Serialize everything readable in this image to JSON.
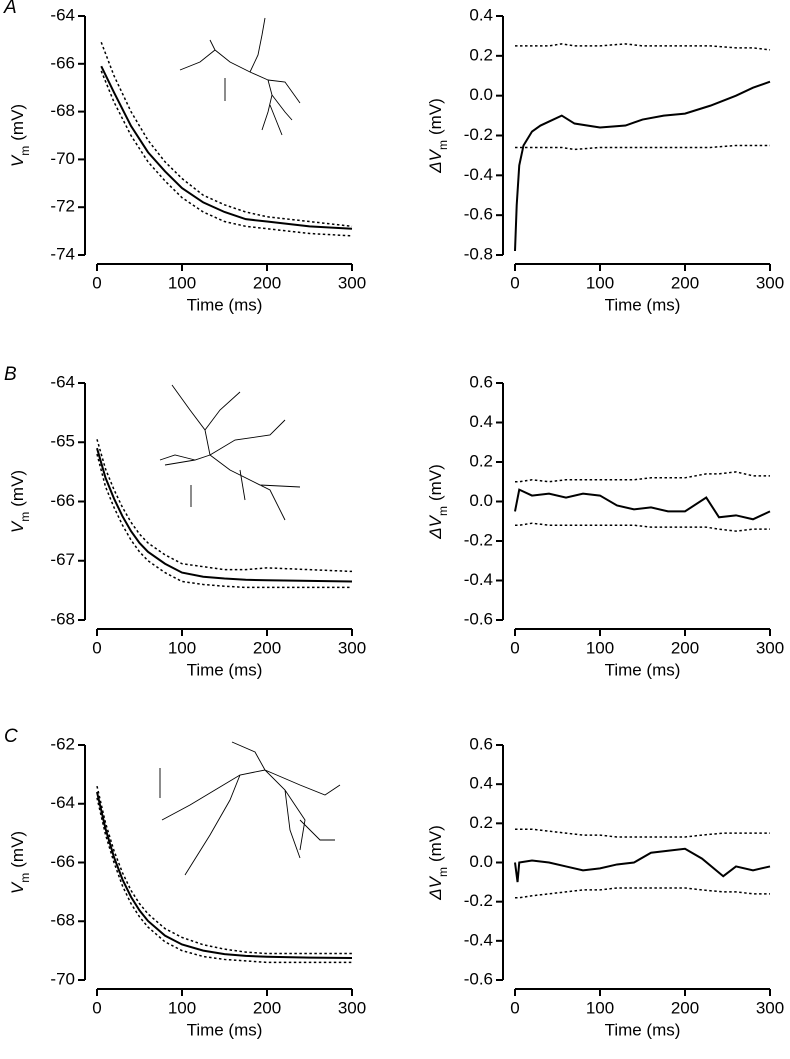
{
  "chart_data": [
    {
      "type": "line",
      "panel": "A",
      "xlabel": "Time (ms)",
      "ylabel": [
        "V",
        "m",
        "(mV)"
      ],
      "xlim": [
        0,
        300
      ],
      "xticks": [
        0,
        100,
        200,
        300
      ],
      "ylim": [
        -74,
        -64
      ],
      "yticks": [
        -74,
        -72,
        -70,
        -68,
        -66,
        -64
      ],
      "x": [
        5,
        20,
        40,
        60,
        80,
        100,
        125,
        150,
        175,
        200,
        250,
        300
      ],
      "series": [
        {
          "color": "#000000",
          "style": "solid",
          "values": [
            -66.1,
            -67.2,
            -68.6,
            -69.7,
            -70.5,
            -71.2,
            -71.8,
            -72.2,
            -72.5,
            -72.6,
            -72.8,
            -72.9
          ]
        },
        {
          "color": "#000000",
          "style": "dotted",
          "values": [
            -65.1,
            -66.5,
            -68.0,
            -69.2,
            -70.1,
            -70.8,
            -71.5,
            -71.9,
            -72.2,
            -72.4,
            -72.6,
            -72.8
          ]
        },
        {
          "color": "#000000",
          "style": "dotted",
          "values": [
            -66.3,
            -67.6,
            -69.0,
            -70.1,
            -70.9,
            -71.6,
            -72.2,
            -72.6,
            -72.8,
            -72.9,
            -73.1,
            -73.2
          ]
        }
      ]
    },
    {
      "type": "line",
      "xlabel": "Time (ms)",
      "ylabel": [
        "ΔV",
        "m",
        "(mV)"
      ],
      "xlim": [
        0,
        300
      ],
      "xticks": [
        0,
        100,
        200,
        300
      ],
      "ylim": [
        -0.8,
        0.4
      ],
      "yticks": [
        -0.8,
        -0.6,
        -0.4,
        -0.2,
        {
          "value": 0,
          "label": "0.0"
        },
        0.2,
        0.4
      ],
      "x": [
        0,
        2,
        5,
        10,
        20,
        30,
        40,
        55,
        70,
        100,
        130,
        150,
        175,
        200,
        230,
        260,
        280,
        300
      ],
      "series": [
        {
          "color": "#000000",
          "style": "solid",
          "values": [
            -0.78,
            -0.55,
            -0.35,
            -0.25,
            -0.18,
            -0.15,
            -0.13,
            -0.1,
            -0.14,
            -0.16,
            -0.15,
            -0.12,
            -0.1,
            -0.09,
            -0.05,
            0.0,
            0.04,
            0.07
          ]
        },
        {
          "color": "#000000",
          "style": "dotted",
          "values": [
            0.25,
            0.25,
            0.25,
            0.25,
            0.25,
            0.25,
            0.25,
            0.26,
            0.25,
            0.25,
            0.26,
            0.25,
            0.25,
            0.25,
            0.25,
            0.24,
            0.24,
            0.23
          ]
        },
        {
          "color": "#000000",
          "style": "dotted",
          "values": [
            -0.26,
            -0.26,
            -0.26,
            -0.26,
            -0.26,
            -0.26,
            -0.26,
            -0.26,
            -0.27,
            -0.26,
            -0.26,
            -0.26,
            -0.26,
            -0.26,
            -0.26,
            -0.25,
            -0.25,
            -0.25
          ]
        }
      ]
    },
    {
      "type": "line",
      "panel": "B",
      "xlabel": "Time (ms)",
      "ylabel": [
        "V",
        "m",
        "(mV)"
      ],
      "xlim": [
        0,
        300
      ],
      "xticks": [
        0,
        100,
        200,
        300
      ],
      "ylim": [
        -68,
        -64
      ],
      "yticks": [
        -68,
        -67,
        -66,
        -65,
        -64
      ],
      "x": [
        0,
        10,
        20,
        30,
        40,
        50,
        60,
        80,
        100,
        125,
        150,
        175,
        200,
        250,
        300
      ],
      "series": [
        {
          "color": "#000000",
          "style": "solid",
          "values": [
            -65.1,
            -65.6,
            -65.95,
            -66.25,
            -66.5,
            -66.7,
            -66.85,
            -67.05,
            -67.2,
            -67.27,
            -67.3,
            -67.32,
            -67.33,
            -67.34,
            -67.35
          ]
        },
        {
          "color": "#000000",
          "style": "dotted",
          "values": [
            -64.95,
            -65.45,
            -65.8,
            -66.1,
            -66.35,
            -66.55,
            -66.7,
            -66.9,
            -67.05,
            -67.1,
            -67.15,
            -67.15,
            -67.12,
            -67.15,
            -67.18
          ]
        },
        {
          "color": "#000000",
          "style": "dotted",
          "values": [
            -65.2,
            -65.75,
            -66.1,
            -66.4,
            -66.65,
            -66.85,
            -67.0,
            -67.2,
            -67.35,
            -67.4,
            -67.43,
            -67.45,
            -67.45,
            -67.45,
            -67.45
          ]
        }
      ]
    },
    {
      "type": "line",
      "xlabel": "Time (ms)",
      "ylabel": [
        "ΔV",
        "m",
        "(mV)"
      ],
      "xlim": [
        0,
        300
      ],
      "xticks": [
        0,
        100,
        200,
        300
      ],
      "ylim": [
        -0.6,
        0.6
      ],
      "yticks": [
        -0.6,
        -0.4,
        -0.2,
        {
          "value": 0,
          "label": "0.0"
        },
        0.2,
        0.4,
        0.6
      ],
      "x": [
        0,
        5,
        20,
        40,
        60,
        80,
        100,
        120,
        140,
        160,
        180,
        200,
        225,
        240,
        260,
        280,
        300
      ],
      "series": [
        {
          "color": "#000000",
          "style": "solid",
          "values": [
            -0.05,
            0.06,
            0.03,
            0.04,
            0.02,
            0.04,
            0.03,
            -0.02,
            -0.04,
            -0.03,
            -0.05,
            -0.05,
            0.02,
            -0.08,
            -0.07,
            -0.09,
            -0.05
          ]
        },
        {
          "color": "#000000",
          "style": "dotted",
          "values": [
            0.1,
            0.1,
            0.11,
            0.1,
            0.11,
            0.11,
            0.11,
            0.11,
            0.11,
            0.12,
            0.12,
            0.12,
            0.14,
            0.14,
            0.15,
            0.13,
            0.13
          ]
        },
        {
          "color": "#000000",
          "style": "dotted",
          "values": [
            -0.12,
            -0.12,
            -0.11,
            -0.12,
            -0.12,
            -0.12,
            -0.12,
            -0.12,
            -0.12,
            -0.13,
            -0.13,
            -0.13,
            -0.13,
            -0.14,
            -0.15,
            -0.14,
            -0.14
          ]
        }
      ]
    },
    {
      "type": "line",
      "panel": "C",
      "xlabel": "Time (ms)",
      "ylabel": [
        "V",
        "m",
        "(mV)"
      ],
      "xlim": [
        0,
        300
      ],
      "xticks": [
        0,
        100,
        200,
        300
      ],
      "ylim": [
        -70,
        -62
      ],
      "yticks": [
        -70,
        -68,
        -66,
        -64,
        -62
      ],
      "x": [
        0,
        10,
        20,
        30,
        40,
        50,
        60,
        80,
        100,
        125,
        150,
        175,
        200,
        250,
        300
      ],
      "series": [
        {
          "color": "#000000",
          "style": "solid",
          "values": [
            -63.6,
            -64.85,
            -65.82,
            -66.58,
            -67.17,
            -67.63,
            -67.99,
            -68.49,
            -68.79,
            -69.0,
            -69.12,
            -69.18,
            -69.21,
            -69.24,
            -69.25
          ]
        },
        {
          "color": "#000000",
          "style": "dotted",
          "values": [
            -63.4,
            -64.65,
            -65.6,
            -66.35,
            -66.95,
            -67.4,
            -67.75,
            -68.25,
            -68.55,
            -68.8,
            -68.95,
            -69.05,
            -69.1,
            -69.1,
            -69.1
          ]
        },
        {
          "color": "#000000",
          "style": "dotted",
          "values": [
            -63.8,
            -65.05,
            -66.0,
            -66.8,
            -67.4,
            -67.85,
            -68.2,
            -68.7,
            -69.0,
            -69.2,
            -69.3,
            -69.35,
            -69.4,
            -69.4,
            -69.4
          ]
        }
      ]
    },
    {
      "type": "line",
      "xlabel": "Time (ms)",
      "ylabel": [
        "ΔV",
        "m",
        "(mV)"
      ],
      "xlim": [
        0,
        300
      ],
      "xticks": [
        0,
        100,
        200,
        300
      ],
      "ylim": [
        -0.6,
        0.6
      ],
      "yticks": [
        -0.6,
        -0.4,
        -0.2,
        {
          "value": 0,
          "label": "0.0"
        },
        0.2,
        0.4,
        0.6
      ],
      "x": [
        0,
        3,
        5,
        20,
        40,
        60,
        80,
        100,
        120,
        140,
        160,
        180,
        200,
        220,
        245,
        260,
        280,
        300
      ],
      "series": [
        {
          "color": "#000000",
          "style": "solid",
          "values": [
            0,
            -0.1,
            0.0,
            0.01,
            0.0,
            -0.02,
            -0.04,
            -0.03,
            -0.01,
            0.0,
            0.05,
            0.06,
            0.07,
            0.02,
            -0.07,
            -0.02,
            -0.04,
            -0.02
          ]
        },
        {
          "color": "#000000",
          "style": "dotted",
          "values": [
            0.17,
            0.17,
            0.17,
            0.17,
            0.16,
            0.15,
            0.14,
            0.14,
            0.13,
            0.13,
            0.13,
            0.13,
            0.13,
            0.14,
            0.15,
            0.15,
            0.15,
            0.15
          ]
        },
        {
          "color": "#000000",
          "style": "dotted",
          "values": [
            -0.18,
            -0.18,
            -0.18,
            -0.17,
            -0.16,
            -0.15,
            -0.14,
            -0.14,
            -0.13,
            -0.13,
            -0.13,
            -0.13,
            -0.13,
            -0.14,
            -0.15,
            -0.15,
            -0.16,
            -0.16
          ]
        }
      ]
    }
  ]
}
